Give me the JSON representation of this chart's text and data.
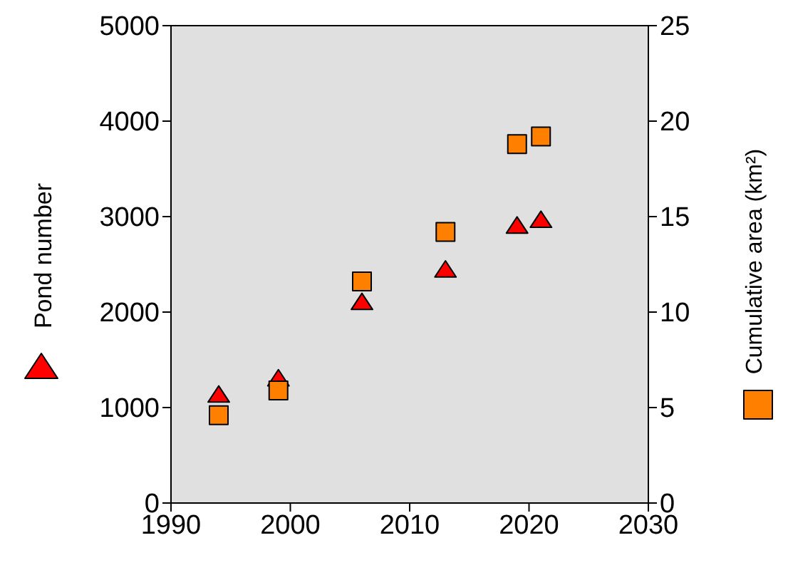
{
  "chart_data": {
    "type": "scatter",
    "ylabel": "Pond number",
    "y2label": "Cumulative area (km²)",
    "x": [
      1994,
      1999,
      2006,
      2013,
      2019,
      2021
    ],
    "xlim": [
      1990,
      2030
    ],
    "xticks": [
      1990,
      2000,
      2010,
      2020,
      2030
    ],
    "ylim": [
      0,
      5000
    ],
    "yticks": [
      0,
      1000,
      2000,
      3000,
      4000,
      5000
    ],
    "y2lim": [
      0,
      25
    ],
    "y2ticks": [
      0,
      5,
      10,
      15,
      20,
      25
    ],
    "grid": false,
    "series": [
      {
        "color": "#ff0000",
        "marker": "triangle",
        "values": [
          1130,
          1300,
          2100,
          2440,
          2900,
          2960
        ]
      },
      {
        "color": "#ff8000",
        "marker": "square",
        "axis": "y2",
        "values": [
          4.6,
          5.9,
          11.6,
          14.2,
          18.8,
          19.2
        ]
      }
    ]
  }
}
